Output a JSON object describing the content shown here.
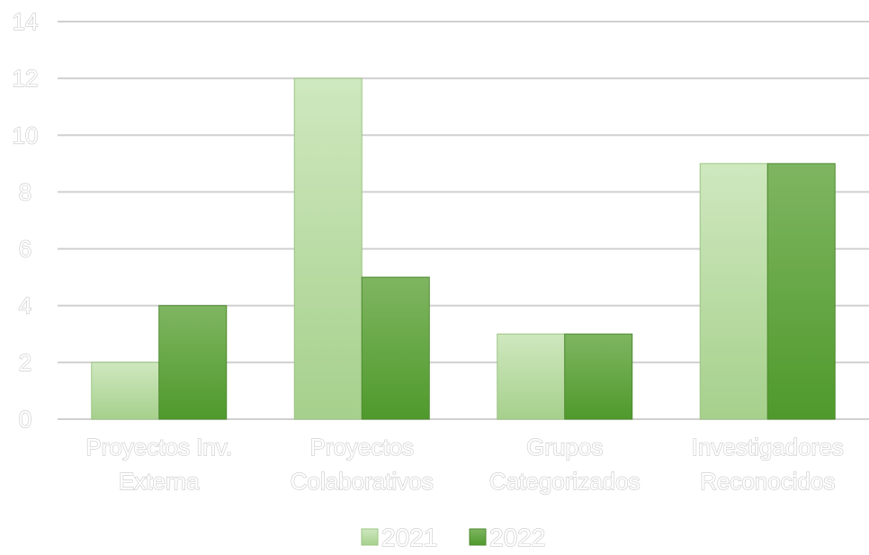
{
  "chart_data": {
    "type": "bar",
    "title": "",
    "xlabel": "",
    "ylabel": "",
    "categories": [
      [
        "Proyectos Inv.",
        "Externa"
      ],
      [
        "Proyectos",
        "Colaborativos"
      ],
      [
        "Grupos",
        "Categorizados"
      ],
      [
        "Investigadores",
        "Reconocidos"
      ]
    ],
    "series": [
      {
        "name": "2021",
        "values": [
          2,
          12,
          3,
          9
        ],
        "color": "#b3d89c"
      },
      {
        "name": "2022",
        "values": [
          4,
          5,
          3,
          9
        ],
        "color": "#5f9e3c"
      }
    ],
    "ylim": [
      0,
      14
    ],
    "yticks": [
      "0",
      "2",
      "4",
      "6",
      "8",
      "10",
      "12",
      "14"
    ],
    "grid": true,
    "legend_position": "bottom",
    "colors": {
      "grid": "#d0d0d0",
      "label_outline": "#c9c9c9"
    }
  }
}
